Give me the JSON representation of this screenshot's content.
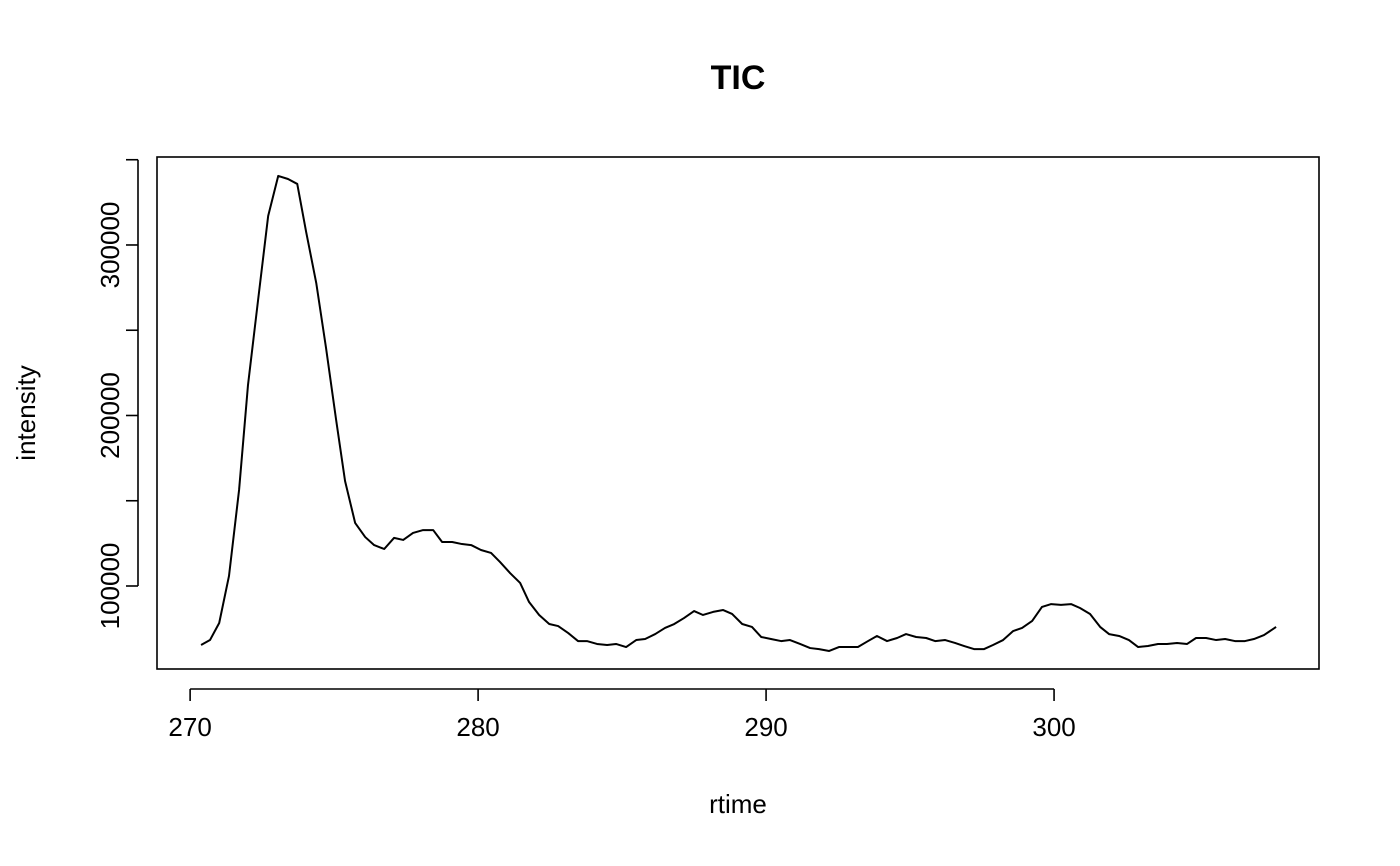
{
  "chart_data": {
    "type": "line",
    "title": "TIC",
    "x_label": "rtime",
    "y_label": "intensity",
    "x": [
      270.38,
      270.69,
      271.01,
      271.35,
      271.7,
      272.01,
      272.36,
      272.71,
      273.06,
      273.4,
      273.72,
      274.03,
      274.38,
      274.72,
      275.07,
      275.38,
      275.73,
      276.08,
      276.39,
      276.74,
      277.08,
      277.4,
      277.74,
      278.09,
      278.44,
      278.75,
      279.1,
      279.44,
      279.76,
      280.1,
      280.45,
      280.76,
      281.11,
      281.46,
      281.77,
      282.12,
      282.47,
      282.78,
      283.13,
      283.47,
      283.78,
      284.13,
      284.48,
      284.79,
      285.14,
      285.49,
      285.8,
      286.15,
      286.49,
      286.81,
      287.15,
      287.5,
      287.81,
      288.16,
      288.51,
      288.82,
      289.17,
      289.51,
      289.83,
      290.17,
      290.52,
      290.83,
      291.18,
      291.53,
      291.84,
      292.19,
      292.53,
      292.85,
      293.19,
      293.54,
      293.85,
      294.2,
      294.55,
      294.86,
      295.21,
      295.56,
      295.87,
      296.22,
      296.56,
      296.88,
      297.22,
      297.57,
      297.88,
      298.23,
      298.58,
      298.89,
      299.24,
      299.58,
      299.9,
      300.24,
      300.59,
      300.9,
      301.25,
      301.6,
      301.91,
      302.26,
      302.6,
      302.92,
      303.26,
      303.61,
      303.92,
      304.27,
      304.62,
      304.93,
      305.28,
      305.63,
      305.94,
      306.28,
      306.63,
      306.94,
      307.29,
      307.71
    ],
    "values": [
      65400,
      68300,
      78300,
      105900,
      156300,
      217900,
      267700,
      317000,
      340500,
      338700,
      335800,
      307600,
      277700,
      239600,
      197400,
      161600,
      137000,
      128700,
      124000,
      121700,
      128200,
      127000,
      131100,
      132800,
      132800,
      125800,
      125800,
      124600,
      124000,
      121100,
      119400,
      114100,
      107600,
      101800,
      90600,
      83000,
      77700,
      76500,
      72400,
      67700,
      67700,
      66000,
      65400,
      66000,
      64200,
      68300,
      68900,
      71800,
      75400,
      77700,
      81200,
      85300,
      83000,
      84800,
      85900,
      83600,
      77700,
      76000,
      70100,
      68900,
      67700,
      68300,
      66000,
      63600,
      63000,
      61900,
      64200,
      64200,
      64200,
      67700,
      70700,
      67700,
      69500,
      71800,
      70100,
      69500,
      67700,
      68300,
      66600,
      64800,
      63000,
      63000,
      65400,
      68300,
      73600,
      75400,
      79500,
      87700,
      89400,
      88900,
      89400,
      87100,
      83600,
      76000,
      71800,
      70700,
      68300,
      64200,
      64800,
      66000,
      66000,
      66600,
      66000,
      69500,
      69500,
      68300,
      68900,
      67700,
      67700,
      68900,
      71200,
      76000
    ],
    "color": "#000000",
    "xlim": [
      268.85,
      309.2
    ],
    "xticks": [
      270,
      280,
      290,
      300
    ],
    "ylim": [
      51320,
      351600
    ],
    "yticks": [
      100000,
      200000,
      300000
    ],
    "yminorticks": [
      150000,
      250000,
      350000
    ],
    "grid": false
  }
}
